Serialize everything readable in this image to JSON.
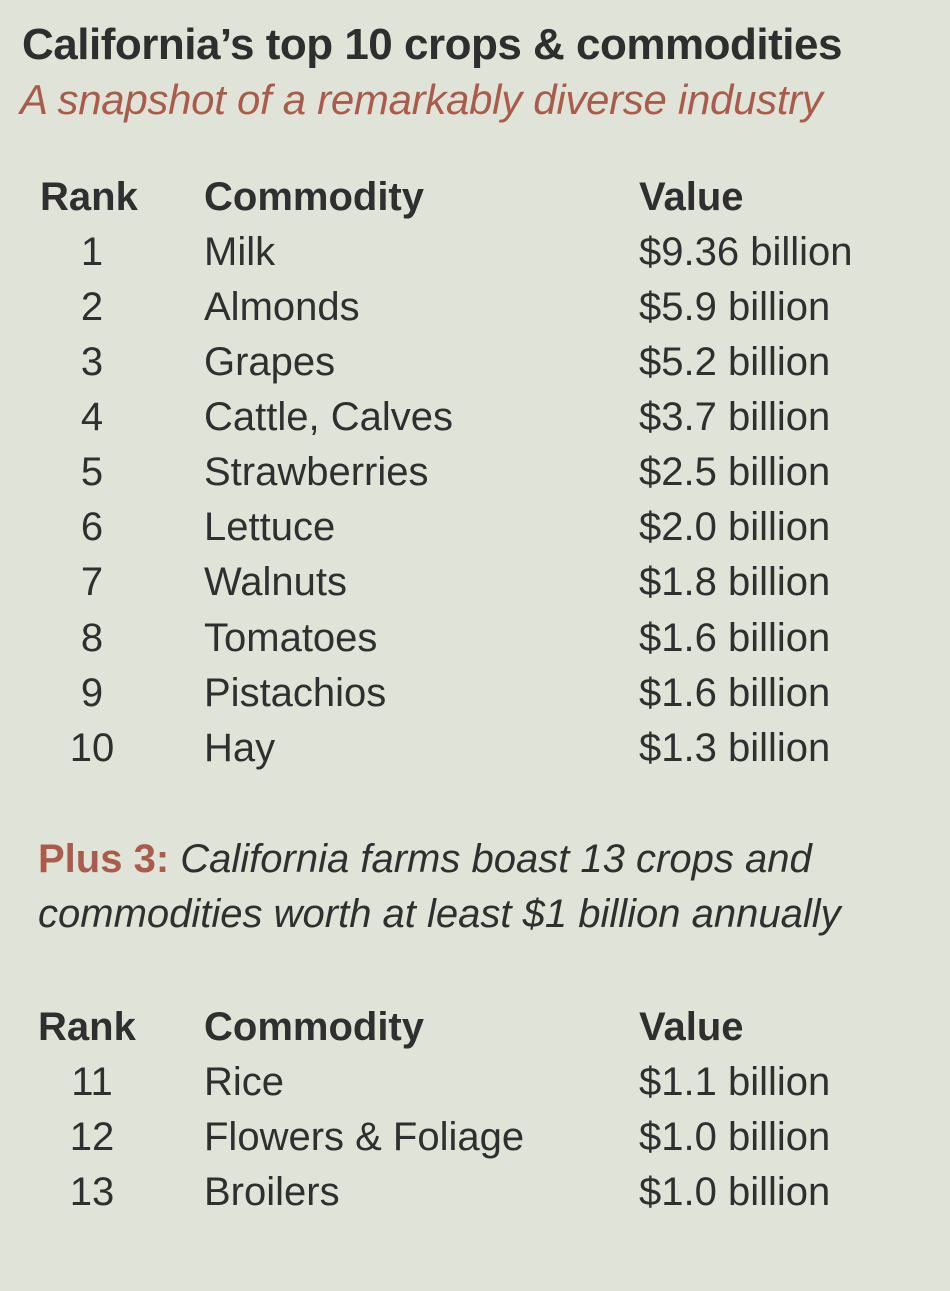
{
  "title": "California’s top 10 crops & commodities",
  "subtitle": "A snapshot of  a remarkably diverse industry",
  "table1": {
    "headers": {
      "rank": "Rank",
      "commodity": "Commodity",
      "value": "Value"
    },
    "rows": [
      {
        "rank": "1",
        "commodity": "Milk",
        "value": "$9.36 billion"
      },
      {
        "rank": "2",
        "commodity": "Almonds",
        "value": "$5.9 billion"
      },
      {
        "rank": "3",
        "commodity": "Grapes",
        "value": "$5.2 billion"
      },
      {
        "rank": "4",
        "commodity": "Cattle, Calves",
        "value": "$3.7 billion"
      },
      {
        "rank": "5",
        "commodity": "Strawberries",
        "value": "$2.5 billion"
      },
      {
        "rank": "6",
        "commodity": "Lettuce",
        "value": "$2.0 billion"
      },
      {
        "rank": "7",
        "commodity": "Walnuts",
        "value": "$1.8 billion"
      },
      {
        "rank": "8",
        "commodity": "Tomatoes",
        "value": "$1.6 billion"
      },
      {
        "rank": "9",
        "commodity": "Pistachios",
        "value": "$1.6 billion"
      },
      {
        "rank": "10",
        "commodity": "Hay",
        "value": "$1.3 billion"
      }
    ]
  },
  "note": {
    "label": "Plus 3:",
    "text": " California farms boast 13 crops and commodities worth at least $1 billion annually"
  },
  "table2": {
    "headers": {
      "rank": "Rank",
      "commodity": "Commodity",
      "value": "Value"
    },
    "rows": [
      {
        "rank": "11",
        "commodity": "Rice",
        "value": "$1.1 billion"
      },
      {
        "rank": "12",
        "commodity": "Flowers & Foliage",
        "value": "$1.0 billion"
      },
      {
        "rank": "13",
        "commodity": "Broilers",
        "value": "$1.0 billion"
      }
    ]
  },
  "colors": {
    "background": "#e0e4d8",
    "text": "#2f2f2f",
    "accent": "#a95c4c"
  }
}
